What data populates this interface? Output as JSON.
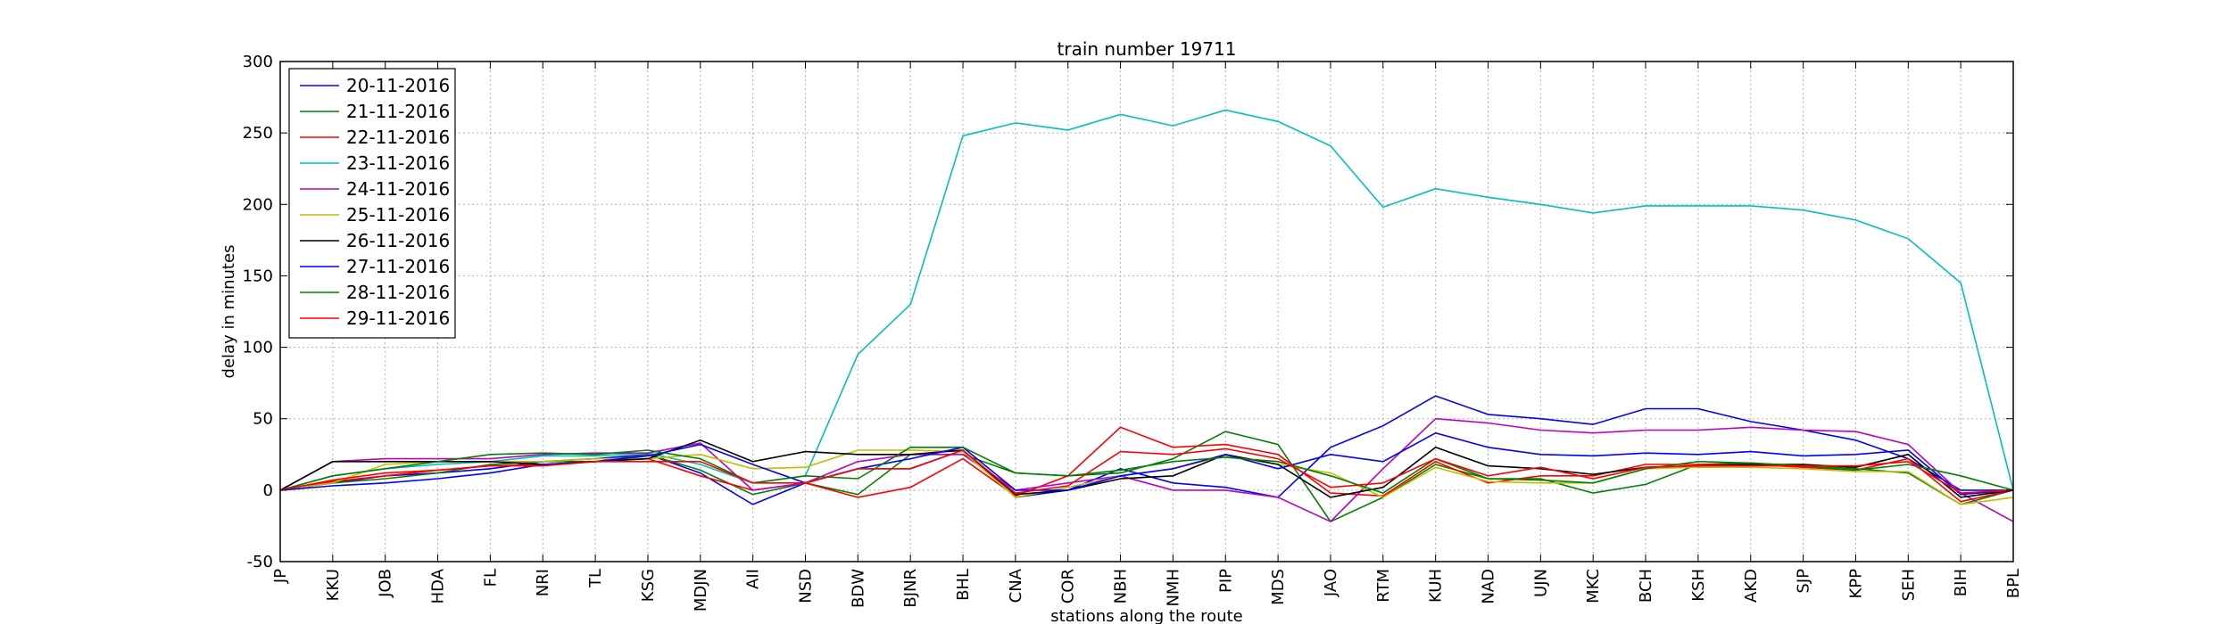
{
  "chart_data": {
    "type": "line",
    "title": "train number 19711",
    "xlabel": "stations along the route",
    "ylabel": "delay in minutes",
    "ylim": [
      -50,
      300
    ],
    "yticks": [
      -50,
      0,
      50,
      100,
      150,
      200,
      250,
      300
    ],
    "grid": true,
    "legend_position": "top-left",
    "categories": [
      "JP",
      "KKU",
      "JOB",
      "HDA",
      "FL",
      "NRI",
      "TL",
      "KSG",
      "MDJN",
      "AII",
      "NSD",
      "BDW",
      "BJNR",
      "BHL",
      "CNA",
      "COR",
      "NBH",
      "NMH",
      "PIP",
      "MDS",
      "JAO",
      "RTM",
      "KUH",
      "NAD",
      "UJN",
      "MKC",
      "BCH",
      "KSH",
      "AKD",
      "SJP",
      "KPP",
      "SEH",
      "BIH",
      "BPL"
    ],
    "series": [
      {
        "name": "20-11-2016",
        "color": "#0000ff",
        "values": [
          0,
          5,
          10,
          12,
          15,
          20,
          22,
          25,
          12,
          -10,
          5,
          15,
          15,
          28,
          -5,
          0,
          15,
          5,
          2,
          -5,
          30,
          45,
          66,
          53,
          50,
          46,
          57,
          57,
          48,
          42,
          35,
          22,
          0,
          0
        ]
      },
      {
        "name": "21-11-2016",
        "color": "#008000",
        "values": [
          0,
          5,
          8,
          12,
          18,
          20,
          20,
          25,
          14,
          -3,
          5,
          -3,
          25,
          25,
          12,
          10,
          12,
          22,
          41,
          32,
          -22,
          -5,
          18,
          8,
          8,
          -2,
          4,
          18,
          19,
          17,
          15,
          12,
          -10,
          0
        ]
      },
      {
        "name": "22-11-2016",
        "color": "#ff0000",
        "values": [
          0,
          6,
          10,
          14,
          17,
          18,
          20,
          22,
          10,
          0,
          5,
          -5,
          2,
          22,
          -4,
          10,
          44,
          30,
          32,
          25,
          -2,
          -4,
          20,
          5,
          10,
          10,
          18,
          18,
          18,
          16,
          14,
          22,
          -8,
          0
        ]
      },
      {
        "name": "23-11-2016",
        "color": "#00bfbf",
        "values": [
          0,
          10,
          15,
          18,
          20,
          24,
          24,
          26,
          18,
          5,
          10,
          95,
          130,
          248,
          257,
          252,
          263,
          255,
          266,
          258,
          241,
          198,
          211,
          205,
          200,
          194,
          199,
          199,
          199,
          196,
          189,
          176,
          145,
          0
        ]
      },
      {
        "name": "24-11-2016",
        "color": "#bf00bf",
        "values": [
          0,
          20,
          22,
          22,
          22,
          25,
          26,
          26,
          33,
          0,
          5,
          20,
          25,
          25,
          0,
          5,
          10,
          0,
          0,
          -5,
          -22,
          15,
          50,
          47,
          42,
          40,
          42,
          42,
          44,
          42,
          41,
          32,
          -2,
          -22
        ]
      },
      {
        "name": "25-11-2016",
        "color": "#bfbf00",
        "values": [
          0,
          5,
          18,
          20,
          20,
          20,
          22,
          22,
          25,
          15,
          16,
          28,
          28,
          27,
          -5,
          2,
          10,
          15,
          24,
          18,
          12,
          -5,
          16,
          6,
          5,
          5,
          15,
          16,
          16,
          15,
          13,
          13,
          -10,
          -5
        ]
      },
      {
        "name": "26-11-2016",
        "color": "#000000",
        "values": [
          0,
          20,
          20,
          20,
          20,
          18,
          20,
          22,
          35,
          20,
          27,
          25,
          25,
          28,
          -3,
          0,
          8,
          10,
          25,
          18,
          -5,
          2,
          30,
          17,
          15,
          11,
          16,
          17,
          18,
          18,
          16,
          25,
          -5,
          0
        ]
      },
      {
        "name": "27-11-2016",
        "color": "#0000ff",
        "values": [
          0,
          3,
          5,
          8,
          12,
          18,
          20,
          24,
          32,
          18,
          5,
          15,
          22,
          30,
          0,
          0,
          10,
          15,
          25,
          15,
          25,
          20,
          40,
          30,
          25,
          24,
          26,
          25,
          27,
          24,
          25,
          28,
          -3,
          0
        ]
      },
      {
        "name": "28-11-2016",
        "color": "#008000",
        "values": [
          0,
          10,
          15,
          20,
          25,
          26,
          25,
          28,
          22,
          5,
          10,
          8,
          30,
          30,
          12,
          10,
          14,
          20,
          23,
          20,
          10,
          -2,
          22,
          8,
          7,
          5,
          15,
          20,
          19,
          17,
          14,
          18,
          10,
          0
        ]
      },
      {
        "name": "29-11-2016",
        "color": "#ff0000",
        "values": [
          0,
          7,
          12,
          14,
          17,
          17,
          20,
          20,
          20,
          5,
          5,
          15,
          15,
          28,
          -2,
          3,
          27,
          25,
          29,
          22,
          2,
          5,
          22,
          10,
          16,
          8,
          16,
          17,
          17,
          17,
          17,
          20,
          -2,
          0
        ]
      }
    ]
  }
}
